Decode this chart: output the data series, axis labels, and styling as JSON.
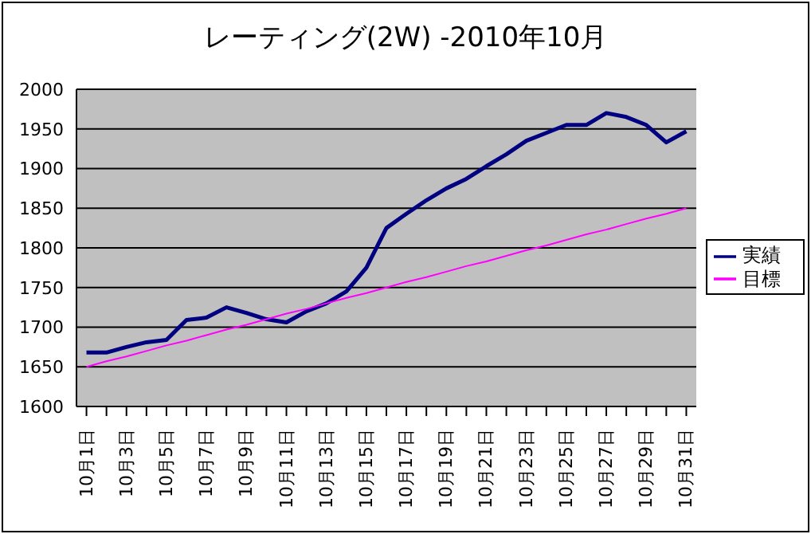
{
  "chart_data": {
    "type": "line",
    "title": "レーティング(2W) -2010年10月",
    "categories": [
      "10月1日",
      null,
      "10月3日",
      null,
      "10月5日",
      null,
      "10月7日",
      null,
      "10月9日",
      null,
      "10月11日",
      null,
      "10月13日",
      null,
      "10月15日",
      null,
      "10月17日",
      null,
      "10月19日",
      null,
      "10月21日",
      null,
      "10月23日",
      null,
      "10月25日",
      null,
      "10月27日",
      null,
      "10月29日",
      null,
      "10月31日"
    ],
    "series": [
      {
        "name": "実績",
        "color": "#000080",
        "values": [
          1668,
          1668,
          1675,
          1681,
          1684,
          1709,
          1712,
          1725,
          1718,
          1710,
          1706,
          1720,
          1730,
          1745,
          1775,
          1825,
          1843,
          1860,
          1875,
          1887,
          1903,
          1918,
          1935,
          1945,
          1955,
          1955,
          1970,
          1965,
          1955,
          1933,
          1947
        ]
      },
      {
        "name": "目標",
        "color": "#ff00ff",
        "values": [
          1650,
          1657,
          1663,
          1670,
          1677,
          1683,
          1690,
          1697,
          1703,
          1710,
          1717,
          1723,
          1730,
          1737,
          1743,
          1750,
          1757,
          1763,
          1770,
          1777,
          1783,
          1790,
          1797,
          1803,
          1810,
          1817,
          1823,
          1830,
          1837,
          1843,
          1850
        ]
      }
    ],
    "ylim": [
      1600,
      2000
    ],
    "yticks": [
      1600,
      1650,
      1700,
      1750,
      1800,
      1850,
      1900,
      1950,
      2000
    ],
    "grid": "y",
    "legend": "right",
    "marker": "none",
    "line_style": "solid"
  }
}
